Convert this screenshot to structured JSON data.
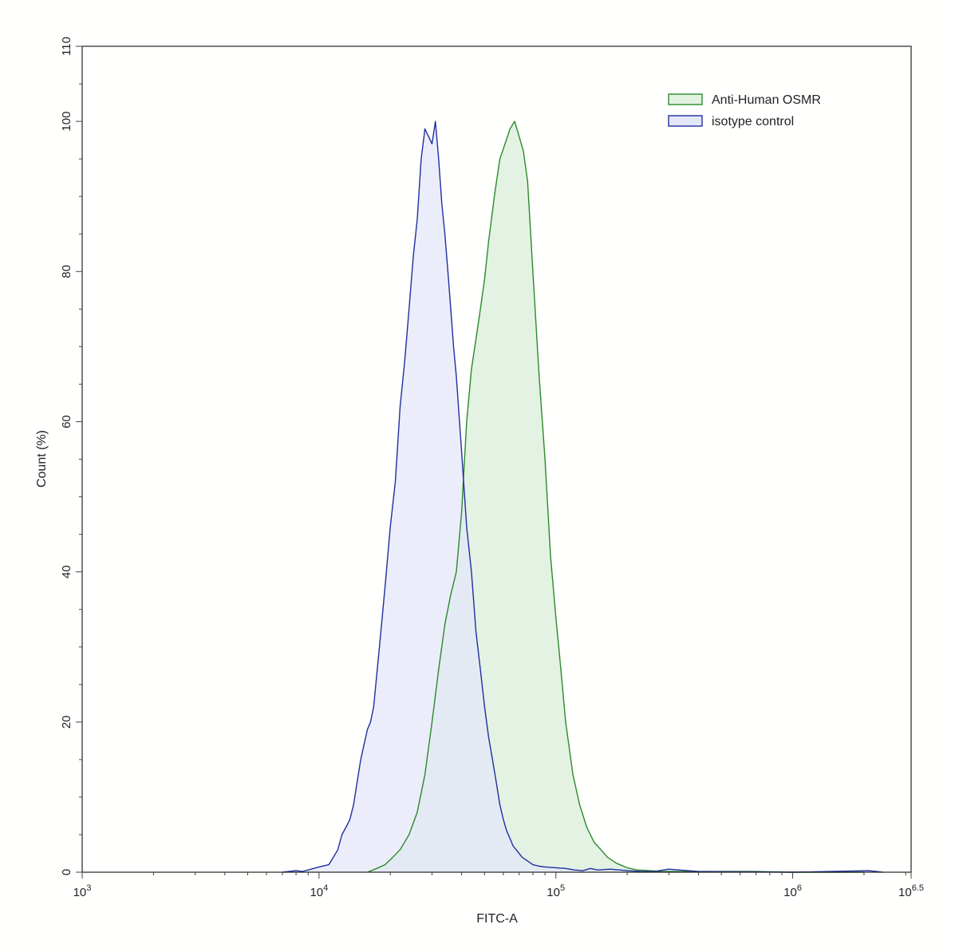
{
  "chart_data": {
    "type": "area",
    "xlabel": "FITC-A",
    "ylabel": "Count  (%)",
    "x_scale": "log",
    "xlim": [
      1000,
      3162277.66
    ],
    "ylim": [
      0,
      110
    ],
    "x_ticks": [
      {
        "value": 1000,
        "base": "10",
        "exp": "3"
      },
      {
        "value": 10000,
        "base": "10",
        "exp": "4"
      },
      {
        "value": 100000,
        "base": "10",
        "exp": "5"
      },
      {
        "value": 1000000,
        "base": "10",
        "exp": "6"
      },
      {
        "value": 3162277.66,
        "base": "10",
        "exp": "6.5"
      }
    ],
    "y_ticks": [
      0,
      20,
      40,
      60,
      80,
      100,
      110
    ],
    "legend_position": "top-right",
    "series": [
      {
        "name": "Anti-Human OSMR",
        "color": "#2a8a2a",
        "fill": "#e3f2e3",
        "x": [
          16000,
          17500,
          19000,
          20500,
          22000,
          24000,
          26000,
          28000,
          30000,
          32000,
          34000,
          36000,
          38000,
          40000,
          42000,
          44000,
          46000,
          48000,
          50000,
          52000,
          55000,
          58000,
          61000,
          64000,
          67000,
          70000,
          73000,
          76000,
          80000,
          85000,
          90000,
          95000,
          100000,
          105000,
          110000,
          118000,
          126000,
          135000,
          145000,
          155000,
          165000,
          180000,
          200000,
          220000,
          250000,
          280000,
          350000,
          500000,
          700000,
          1000000,
          2000000
        ],
        "values": [
          0,
          0.5,
          1,
          2,
          3,
          5,
          8,
          13,
          20,
          27,
          33,
          37,
          40,
          48,
          60,
          67,
          71,
          75,
          79,
          84,
          90,
          95,
          97,
          99,
          100,
          98,
          96,
          92,
          80,
          66,
          55,
          42,
          34,
          27,
          20,
          13,
          9,
          6,
          4,
          3,
          2,
          1.2,
          0.6,
          0.3,
          0.2,
          0.1,
          0.1,
          0.1,
          0.1,
          0,
          0
        ]
      },
      {
        "name": "isotype control",
        "color": "#1f2f9f",
        "fill": "#e4e7f8",
        "x": [
          7000,
          8000,
          8500,
          9000,
          10000,
          11000,
          11500,
          12000,
          12500,
          13000,
          13500,
          14000,
          15000,
          16000,
          16500,
          17000,
          18000,
          19000,
          20000,
          21000,
          22000,
          23000,
          24000,
          25000,
          26000,
          27000,
          28000,
          29000,
          30000,
          31000,
          32000,
          33000,
          34000,
          35000,
          36000,
          37000,
          38000,
          40000,
          42000,
          44000,
          46000,
          48000,
          50000,
          52000,
          54000,
          56000,
          58000,
          60000,
          62000,
          64000,
          66000,
          68000,
          72000,
          76000,
          80000,
          85000,
          90000,
          100000,
          110000,
          120000,
          130000,
          140000,
          150000,
          170000,
          200000,
          230000,
          260000,
          300000,
          400000,
          1000000,
          2100000,
          2400000
        ],
        "values": [
          0,
          0.2,
          0.1,
          0.3,
          0.7,
          1,
          2,
          3,
          5,
          6,
          7,
          9,
          15,
          19,
          20,
          22,
          30,
          38,
          46,
          52,
          62,
          68,
          75,
          82,
          87,
          95,
          99,
          98,
          97,
          100,
          95,
          89,
          85,
          80,
          75,
          70,
          66,
          56,
          46,
          40,
          32,
          27,
          22,
          18,
          15,
          12,
          9,
          7,
          5.5,
          4.5,
          3.5,
          3,
          2,
          1.5,
          1,
          0.8,
          0.7,
          0.6,
          0.5,
          0.3,
          0.2,
          0.5,
          0.3,
          0.4,
          0.2,
          0.1,
          0.1,
          0.4,
          0.1,
          0,
          0.2,
          0
        ]
      }
    ]
  }
}
